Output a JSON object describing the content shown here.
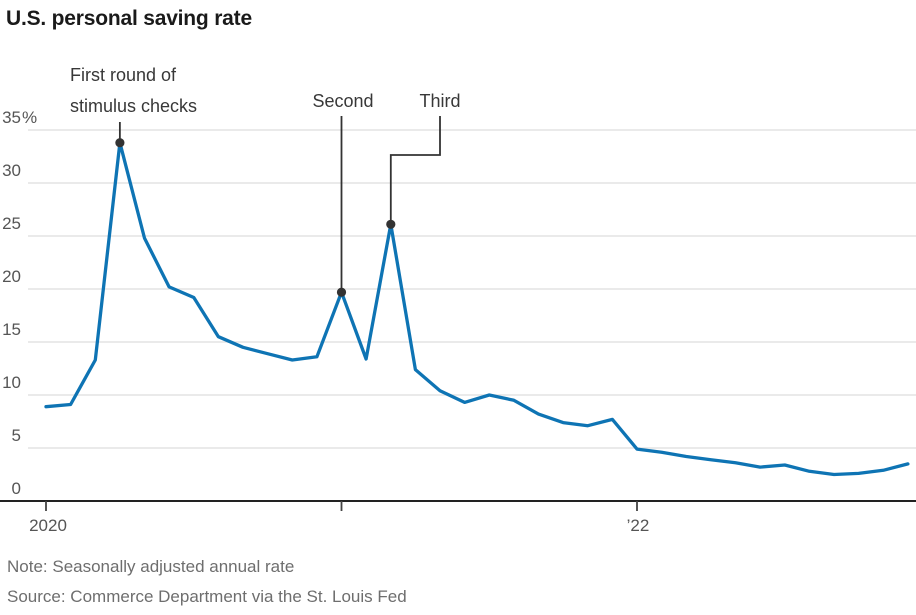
{
  "title": "U.S. personal saving rate",
  "note": "Note: Seasonally adjusted annual rate",
  "source": "Source: Commerce Department via the St. Louis Fed",
  "annotations": {
    "first_round": {
      "text_line1": "First round of",
      "text_line2": "stimulus checks",
      "month": "Apr 2020",
      "month_index": 3,
      "value": 33.8
    },
    "second": {
      "text": "Second",
      "month": "Jan 2021",
      "month_index": 12,
      "value": 19.7
    },
    "third": {
      "text": "Third",
      "month": "Mar 2021",
      "month_index": 14,
      "value": 26.1
    }
  },
  "colors": {
    "line_blue": "#0e74b4",
    "annotation_dark": "#333333",
    "gridline": "#e3e3e3",
    "axis": "#222222",
    "tick": "#444444",
    "tick_label": "#555555",
    "title_text": "#1a1a1a",
    "note_text": "#6e6e6e",
    "frame_border": "#1e1e1e"
  },
  "chart_data": {
    "type": "line",
    "title": "U.S. personal saving rate",
    "unit": "%",
    "months": [
      "Jan 2020",
      "Feb 2020",
      "Mar 2020",
      "Apr 2020",
      "May 2020",
      "Jun 2020",
      "Jul 2020",
      "Aug 2020",
      "Sep 2020",
      "Oct 2020",
      "Nov 2020",
      "Dec 2020",
      "Jan 2021",
      "Feb 2021",
      "Mar 2021",
      "Apr 2021",
      "May 2021",
      "Jun 2021",
      "Jul 2021",
      "Aug 2021",
      "Sep 2021",
      "Oct 2021",
      "Nov 2021",
      "Dec 2021",
      "Jan 2022",
      "Feb 2022",
      "Mar 2022",
      "Apr 2022",
      "May 2022",
      "Jun 2022",
      "Jul 2022",
      "Aug 2022",
      "Sep 2022",
      "Oct 2022",
      "Nov 2022",
      "Dec 2022"
    ],
    "values": [
      8.9,
      9.1,
      13.3,
      33.8,
      24.8,
      20.2,
      19.2,
      15.5,
      14.5,
      13.9,
      13.3,
      13.6,
      19.7,
      13.4,
      26.1,
      12.4,
      10.4,
      9.3,
      10.0,
      9.5,
      8.2,
      7.4,
      7.1,
      7.7,
      4.9,
      4.6,
      4.2,
      3.9,
      3.6,
      3.2,
      3.4,
      2.8,
      2.5,
      2.6,
      2.9,
      3.5
    ],
    "ylim": [
      0,
      35
    ],
    "y_ticks": [
      {
        "value": 35,
        "label": "35%"
      },
      {
        "value": 30,
        "label": "30"
      },
      {
        "value": 25,
        "label": "25"
      },
      {
        "value": 20,
        "label": "20"
      },
      {
        "value": 15,
        "label": "15"
      },
      {
        "value": 10,
        "label": "10"
      },
      {
        "value": 5,
        "label": "5"
      },
      {
        "value": 0,
        "label": "0"
      }
    ],
    "x_tick_labels": [
      {
        "month_index": 0,
        "label": "2020"
      },
      {
        "month_index": 12,
        "label": ""
      },
      {
        "month_index": 24,
        "label": "’22"
      }
    ],
    "grid": true,
    "legend": "none"
  }
}
